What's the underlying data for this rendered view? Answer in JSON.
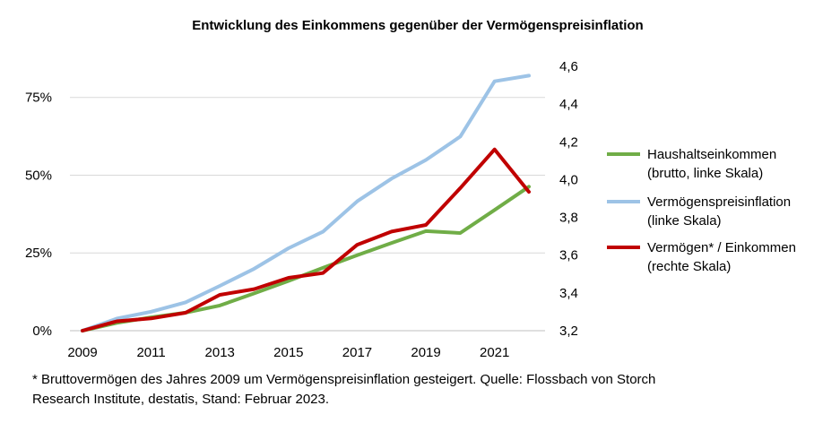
{
  "chart_data": {
    "type": "line",
    "title": "Entwicklung des Einkommens gegenüber der Vermögenspreisinflation",
    "x": [
      2009,
      2010,
      2011,
      2012,
      2013,
      2014,
      2015,
      2016,
      2017,
      2018,
      2019,
      2020,
      2021,
      2022
    ],
    "x_tick_labels": [
      "2009",
      "2011",
      "2013",
      "2015",
      "2017",
      "2019",
      "2021"
    ],
    "y_left": {
      "range": [
        0,
        85
      ],
      "tick_values": [
        0,
        25,
        50,
        75
      ],
      "tick_labels": [
        "0%",
        "25%",
        "50%",
        "75%"
      ]
    },
    "y_right": {
      "range": [
        3.2,
        4.6
      ],
      "tick_values": [
        3.2,
        3.4,
        3.6,
        3.8,
        4.0,
        4.2,
        4.4,
        4.6
      ],
      "tick_labels": [
        "3,2",
        "3,4",
        "3,6",
        "3,8",
        "4,0",
        "4,2",
        "4,4",
        "4,6"
      ]
    },
    "grid": true,
    "legend_position": "right",
    "series": [
      {
        "name": "Haushaltseinkommen",
        "legend_lines": [
          "Haushaltseinkommen",
          "(brutto, linke Skala)"
        ],
        "axis": "left",
        "color": "#70ad47",
        "values": [
          0,
          2.5,
          4.3,
          5.8,
          8.1,
          12.0,
          16.0,
          20.2,
          24.3,
          28.2,
          32.0,
          31.4,
          38.8,
          46.3
        ]
      },
      {
        "name": "Vermögenspreisinflation",
        "legend_lines": [
          "Vermögenspreisinflation",
          "(linke Skala)"
        ],
        "axis": "left",
        "color": "#9dc3e6",
        "values": [
          0,
          3.9,
          6.1,
          9.1,
          14.4,
          19.9,
          26.5,
          31.8,
          41.6,
          48.9,
          54.9,
          62.4,
          80.2,
          82.0
        ]
      },
      {
        "name": "Vermögen* / Einkommen",
        "legend_lines": [
          "Vermögen* / Einkommen",
          "(rechte Skala)"
        ],
        "axis": "right",
        "color": "#c00000",
        "values": [
          3.2,
          3.25,
          3.265,
          3.295,
          3.39,
          3.42,
          3.48,
          3.505,
          3.655,
          3.725,
          3.76,
          3.955,
          4.16,
          3.935
        ]
      }
    ]
  },
  "footnote": {
    "line1": "* Bruttovermögen des Jahres 2009 um Vermögenspreisinflation gesteigert. Quelle: Flossbach von Storch",
    "line2": "Research Institute, destatis, Stand: Februar 2023."
  }
}
